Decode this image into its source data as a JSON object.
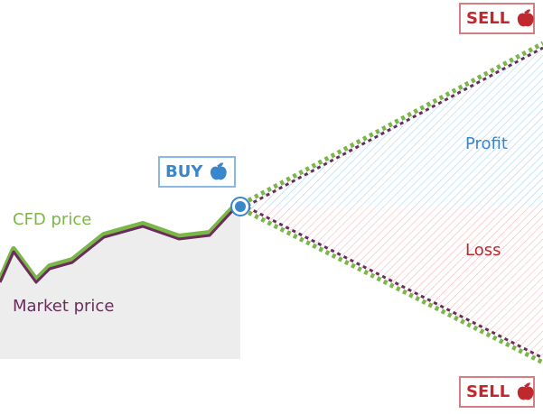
{
  "labels": {
    "cfd_price": "CFD price",
    "market_price": "Market price",
    "profit": "Profit",
    "loss": "Loss"
  },
  "buttons": {
    "buy": "BUY",
    "sell_top": "SELL",
    "sell_bottom": "SELL"
  },
  "icons": {
    "buy": "apple-icon",
    "sell": "apple-icon",
    "entry": "entry-point-icon"
  },
  "colors": {
    "cfd": "#7ab648",
    "market": "#6b2d5c",
    "buy": "#3a86cc",
    "sell": "#c0282d",
    "area": "#ededed",
    "profit_hatch": "#a8d4f0",
    "loss_hatch": "#f4b8bc"
  }
}
